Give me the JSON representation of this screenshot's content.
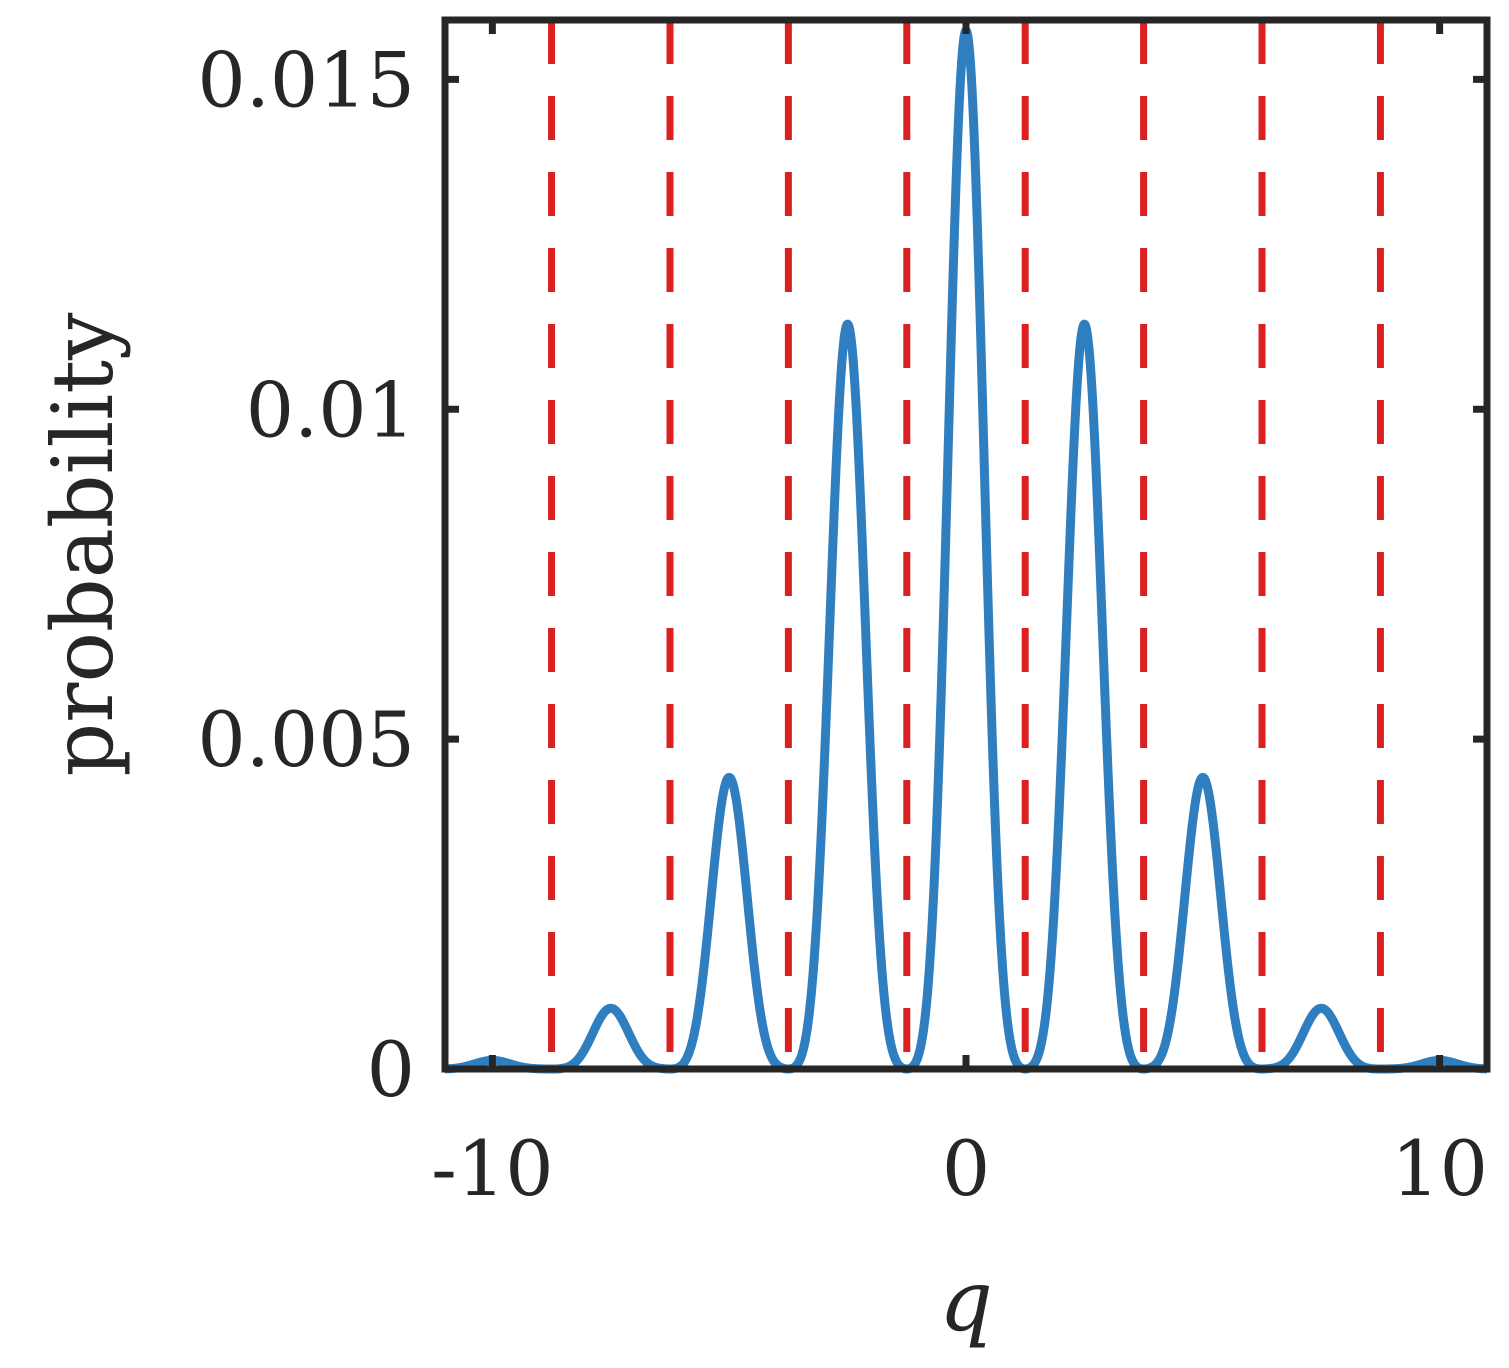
{
  "chart_data": {
    "type": "line",
    "title": "",
    "xlabel": "q",
    "ylabel": "probability",
    "xlim": [
      -11,
      11
    ],
    "ylim": [
      0,
      0.0159
    ],
    "xticks": [
      -10,
      0,
      10
    ],
    "xtick_labels": [
      "-10",
      "0",
      "10"
    ],
    "yticks": [
      0,
      0.005,
      0.01,
      0.015
    ],
    "ytick_labels": [
      "0",
      "0.005",
      "0.01",
      "0.015"
    ],
    "grid": false,
    "legend": "none",
    "series": [
      {
        "color": "#2E7EC0",
        "peaks": [
          {
            "x": -10.0,
            "y": 0.00013
          },
          {
            "x": -7.5,
            "y": 0.00092
          },
          {
            "x": -5.0,
            "y": 0.00442
          },
          {
            "x": -2.5,
            "y": 0.01129
          },
          {
            "x": 0.0,
            "y": 0.01574
          },
          {
            "x": 2.5,
            "y": 0.01129
          },
          {
            "x": 5.0,
            "y": 0.00442
          },
          {
            "x": 7.5,
            "y": 0.00092
          },
          {
            "x": 10.0,
            "y": 0.00013
          }
        ],
        "zeros": [
          -8.75,
          -6.25,
          -3.75,
          -1.25,
          1.25,
          3.75,
          6.25,
          8.75
        ]
      }
    ],
    "vlines": {
      "color": "#DC1F1F",
      "style": "dashed",
      "x": [
        -8.75,
        -6.25,
        -3.75,
        -1.25,
        1.25,
        3.75,
        6.25,
        8.75
      ]
    }
  }
}
